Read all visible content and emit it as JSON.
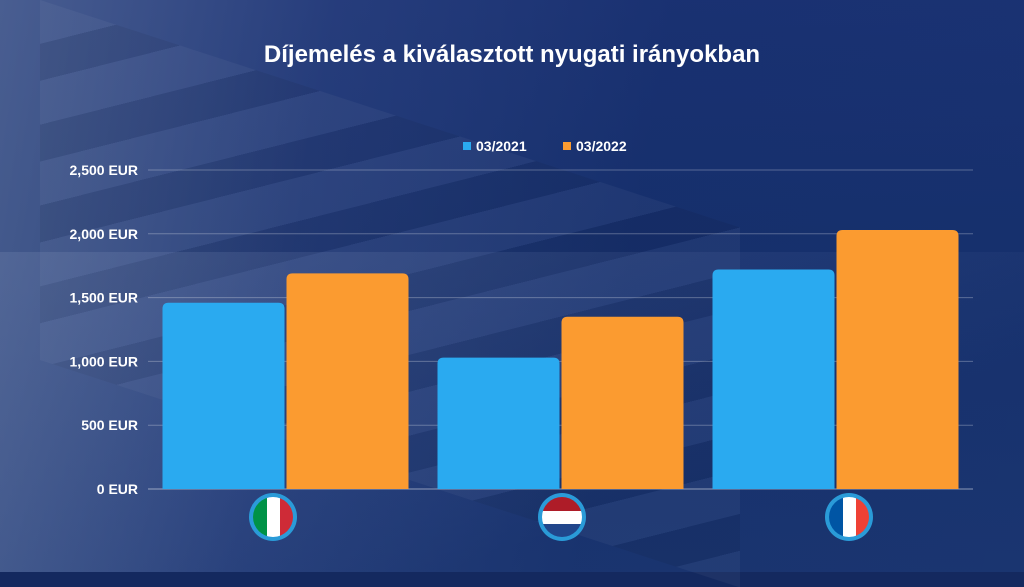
{
  "chart_data": {
    "type": "bar",
    "title": "Díjemelés a kiválasztott nyugati irányokban",
    "categories": [
      "Italy",
      "Netherlands",
      "France"
    ],
    "category_icons": [
      "italy-flag-icon",
      "netherlands-flag-icon",
      "france-flag-icon"
    ],
    "series": [
      {
        "name": "03/2021",
        "color": "#2aaaf0",
        "values": [
          1460,
          1030,
          1720
        ]
      },
      {
        "name": "03/2022",
        "color": "#fb9b30",
        "values": [
          1690,
          1350,
          2030
        ]
      }
    ],
    "y_ticks": [
      "0 EUR",
      "500 EUR",
      "1,000 EUR",
      "1,500 EUR",
      "2,000 EUR",
      "2,500 EUR"
    ],
    "y_tick_values": [
      0,
      500,
      1000,
      1500,
      2000,
      2500
    ],
    "ylim": [
      0,
      2500
    ],
    "xlabel": "",
    "ylabel": "",
    "grid": true,
    "legend_position": "top"
  }
}
